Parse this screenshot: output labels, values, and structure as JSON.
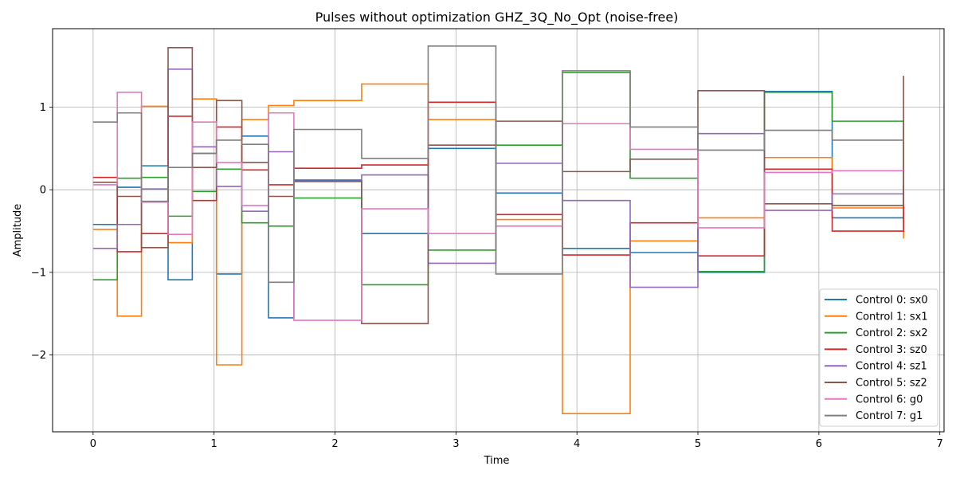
{
  "chart_data": {
    "type": "line",
    "step": "post",
    "title": "Pulses without optimization GHZ_3Q_No_Opt (noise-free)",
    "xlabel": "Time",
    "ylabel": "Amplitude",
    "xlim": [
      -0.335,
      7.035
    ],
    "ylim": [
      -2.93,
      1.95
    ],
    "xticks": [
      0,
      1,
      2,
      3,
      4,
      5,
      6,
      7
    ],
    "yticks": [
      -2,
      -1,
      0,
      1
    ],
    "ytick_labels": [
      "−2",
      "−1",
      "0",
      "1"
    ],
    "grid": true,
    "legend_position": "lower-right",
    "x": [
      0,
      0.2,
      0.4,
      0.62,
      0.82,
      1.02,
      1.23,
      1.45,
      1.66,
      2.22,
      2.77,
      3.33,
      3.88,
      4.44,
      5.0,
      5.55,
      6.11,
      6.7
    ],
    "series": [
      {
        "name": "Control 0: sx0",
        "color": "#1f77b4",
        "values": [
          -0.42,
          0.03,
          0.29,
          -1.09,
          0.44,
          -1.02,
          0.65,
          -1.55,
          0.11,
          -0.53,
          0.5,
          -0.04,
          -0.71,
          -0.76,
          -1.0,
          1.19,
          -0.34,
          0.05
        ]
      },
      {
        "name": "Control 1: sx1",
        "color": "#ff7f0e",
        "values": [
          -0.48,
          -1.53,
          1.01,
          -0.64,
          1.1,
          -2.12,
          0.85,
          1.02,
          1.08,
          1.28,
          0.85,
          -0.36,
          -2.71,
          -0.62,
          -0.34,
          0.39,
          -0.22,
          -0.59
        ]
      },
      {
        "name": "Control 2: sx2",
        "color": "#2ca02c",
        "values": [
          -1.09,
          0.14,
          0.15,
          -0.32,
          -0.02,
          0.25,
          -0.4,
          -0.44,
          -0.1,
          -1.15,
          -0.73,
          0.54,
          1.42,
          0.14,
          -0.99,
          1.18,
          0.83,
          0.05
        ]
      },
      {
        "name": "Control 3: sz0",
        "color": "#d62728",
        "values": [
          0.15,
          -0.75,
          -0.53,
          0.89,
          -0.13,
          0.76,
          0.24,
          0.06,
          0.26,
          0.3,
          1.06,
          -0.3,
          -0.79,
          -0.4,
          -0.8,
          0.25,
          -0.5,
          0.05
        ]
      },
      {
        "name": "Control 4: sz1",
        "color": "#9467bd",
        "values": [
          -0.71,
          -0.42,
          0.01,
          1.46,
          0.52,
          0.04,
          -0.26,
          0.46,
          0.12,
          0.18,
          -0.89,
          0.32,
          -0.13,
          -1.18,
          0.68,
          -0.25,
          -0.05,
          0.05
        ]
      },
      {
        "name": "Control 5: sz2",
        "color": "#8c564b",
        "values": [
          0.09,
          -0.08,
          -0.7,
          1.72,
          0.27,
          1.08,
          0.33,
          -0.08,
          0.1,
          -1.62,
          0.54,
          0.83,
          0.22,
          0.37,
          1.2,
          -0.17,
          -0.19,
          1.38
        ]
      },
      {
        "name": "Control 6: g0",
        "color": "#e377c2",
        "values": [
          0.06,
          1.18,
          -0.15,
          -0.54,
          0.82,
          0.33,
          -0.19,
          0.93,
          -1.58,
          -0.23,
          -0.53,
          -0.44,
          0.8,
          0.49,
          -0.46,
          0.21,
          0.23,
          0.23
        ]
      },
      {
        "name": "Control 7: g1",
        "color": "#7f7f7f",
        "values": [
          0.82,
          0.93,
          -0.14,
          0.27,
          0.44,
          0.6,
          0.55,
          -1.12,
          0.73,
          0.38,
          1.74,
          -1.02,
          1.44,
          0.76,
          0.48,
          0.72,
          0.6,
          0.6
        ]
      }
    ]
  }
}
